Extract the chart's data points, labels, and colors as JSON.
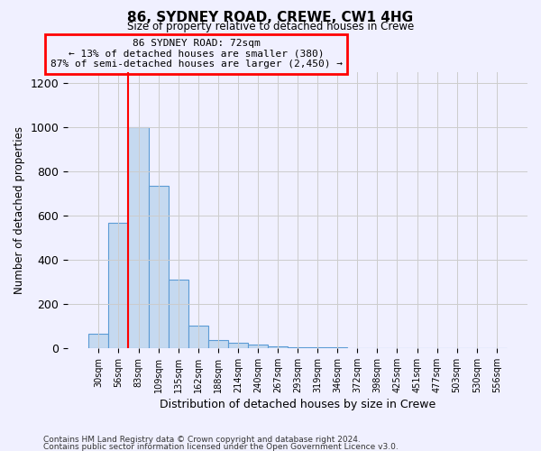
{
  "title": "86, SYDNEY ROAD, CREWE, CW1 4HG",
  "subtitle": "Size of property relative to detached houses in Crewe",
  "xlabel": "Distribution of detached houses by size in Crewe",
  "ylabel": "Number of detached properties",
  "bar_labels": [
    "30sqm",
    "56sqm",
    "83sqm",
    "109sqm",
    "135sqm",
    "162sqm",
    "188sqm",
    "214sqm",
    "240sqm",
    "267sqm",
    "293sqm",
    "319sqm",
    "346sqm",
    "372sqm",
    "398sqm",
    "425sqm",
    "451sqm",
    "477sqm",
    "503sqm",
    "530sqm",
    "556sqm"
  ],
  "bar_values": [
    65,
    565,
    1000,
    735,
    310,
    100,
    38,
    25,
    15,
    7,
    4,
    3,
    2,
    1,
    1,
    1,
    1,
    1,
    1,
    1,
    0
  ],
  "bar_color": "#c5d9f0",
  "bar_edge_color": "#5b9bd5",
  "vline_x": 1.5,
  "vline_color": "red",
  "ylim": [
    0,
    1250
  ],
  "yticks": [
    0,
    200,
    400,
    600,
    800,
    1000,
    1200
  ],
  "annotation_text": "86 SYDNEY ROAD: 72sqm\n← 13% of detached houses are smaller (380)\n87% of semi-detached houses are larger (2,450) →",
  "annotation_box_color": "red",
  "footer_line1": "Contains HM Land Registry data © Crown copyright and database right 2024.",
  "footer_line2": "Contains public sector information licensed under the Open Government Licence v3.0.",
  "background_color": "#f0f0ff",
  "grid_color": "#cccccc"
}
